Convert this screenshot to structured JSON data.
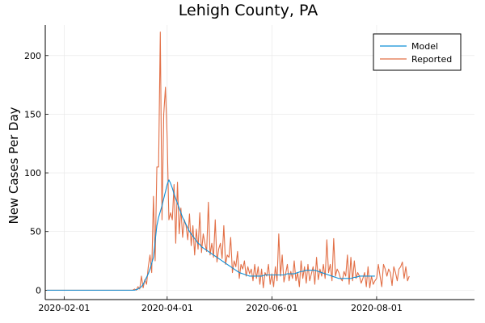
{
  "chart_data": {
    "type": "line",
    "title": "Lehigh County, PA",
    "xlabel": "",
    "ylabel": "New Cases Per Day",
    "x_type": "date",
    "xlim": [
      "2020-01-21",
      "2020-09-27"
    ],
    "ylim": [
      -8,
      226
    ],
    "x_ticks": [
      {
        "date": "2020-02-01",
        "label": "2020-02-01"
      },
      {
        "date": "2020-04-01",
        "label": "2020-04-01"
      },
      {
        "date": "2020-06-01",
        "label": "2020-06-01"
      },
      {
        "date": "2020-08-01",
        "label": "2020-08-01"
      }
    ],
    "y_ticks": [
      0,
      50,
      100,
      150,
      200
    ],
    "grid": true,
    "legend_position": "top-right",
    "start_date": "2020-01-22",
    "series": [
      {
        "name": "Model",
        "color": "#0f8fd6",
        "values": [
          0,
          0,
          0,
          0,
          0,
          0,
          0,
          0,
          0,
          0,
          0,
          0,
          0,
          0,
          0,
          0,
          0,
          0,
          0,
          0,
          0,
          0,
          0,
          0,
          0,
          0,
          0,
          0,
          0,
          0,
          0,
          0,
          0,
          0,
          0,
          0,
          0,
          0,
          0,
          0,
          0,
          0,
          0,
          0,
          0,
          0,
          0,
          0,
          0,
          0,
          0,
          0,
          0.5,
          1,
          2,
          3,
          5,
          8,
          11,
          14,
          18,
          23,
          28,
          42,
          55,
          62,
          67,
          72,
          78,
          84,
          90,
          94,
          91,
          87,
          82,
          78,
          74,
          70,
          66,
          62,
          59,
          56,
          53,
          50,
          48,
          46,
          44,
          42,
          40,
          39,
          37,
          36,
          35,
          34,
          33,
          32,
          31,
          30,
          29,
          28,
          27,
          26,
          25,
          24,
          23,
          22,
          21,
          20,
          19,
          18,
          17,
          16,
          15,
          14.5,
          14,
          13.5,
          13,
          12.5,
          12,
          12,
          12,
          12,
          12,
          12,
          12,
          12,
          12.5,
          13,
          13,
          13,
          13,
          13,
          13,
          13,
          13,
          13,
          13,
          13,
          13,
          13.5,
          14,
          14,
          14,
          14,
          14,
          14.5,
          15,
          15.5,
          16,
          16,
          16.5,
          17,
          17,
          17,
          17,
          17,
          17,
          16.5,
          16,
          15.5,
          15,
          14.5,
          14,
          13.5,
          13,
          12.5,
          12,
          11.5,
          11,
          10.5,
          10,
          10,
          10,
          10,
          10,
          10,
          10,
          10,
          10.5,
          11,
          11,
          11.5,
          12,
          12,
          12,
          12,
          12,
          12,
          12,
          12,
          12,
          12
        ]
      },
      {
        "name": "Reported",
        "color": "#e26f46",
        "values": [
          0,
          0,
          0,
          0,
          0,
          0,
          0,
          0,
          0,
          0,
          0,
          0,
          0,
          0,
          0,
          0,
          0,
          0,
          0,
          0,
          0,
          0,
          0,
          0,
          0,
          0,
          0,
          0,
          0,
          0,
          0,
          0,
          0,
          0,
          0,
          0,
          0,
          0,
          0,
          0,
          0,
          0,
          0,
          0,
          0,
          0,
          0,
          0,
          0,
          0,
          0,
          1,
          0,
          3,
          1,
          12,
          2,
          9,
          5,
          20,
          30,
          15,
          80,
          25,
          105,
          105,
          220,
          60,
          150,
          173,
          130,
          60,
          66,
          60,
          90,
          40,
          92,
          48,
          70,
          45,
          60,
          55,
          43,
          65,
          38,
          55,
          30,
          52,
          35,
          66,
          32,
          48,
          40,
          33,
          75,
          30,
          40,
          28,
          60,
          24,
          35,
          40,
          27,
          55,
          22,
          30,
          28,
          45,
          15,
          25,
          20,
          33,
          10,
          22,
          18,
          25,
          12,
          20,
          14,
          18,
          8,
          22,
          10,
          20,
          5,
          18,
          2,
          15,
          12,
          22,
          5,
          14,
          3,
          20,
          8,
          48,
          12,
          30,
          7,
          14,
          22,
          8,
          16,
          10,
          25,
          8,
          15,
          3,
          25,
          10,
          20,
          6,
          22,
          8,
          14,
          20,
          5,
          28,
          9,
          18,
          12,
          22,
          10,
          43,
          15,
          22,
          8,
          44,
          12,
          18,
          15,
          10,
          8,
          16,
          12,
          30,
          5,
          28,
          8,
          25,
          10,
          15,
          12,
          6,
          10,
          15,
          3,
          20,
          2,
          12,
          5,
          8,
          10,
          22,
          12,
          3,
          22,
          18,
          12,
          18,
          15,
          4,
          20,
          15,
          8,
          18,
          20,
          24,
          10,
          20,
          8,
          12
        ]
      }
    ]
  }
}
